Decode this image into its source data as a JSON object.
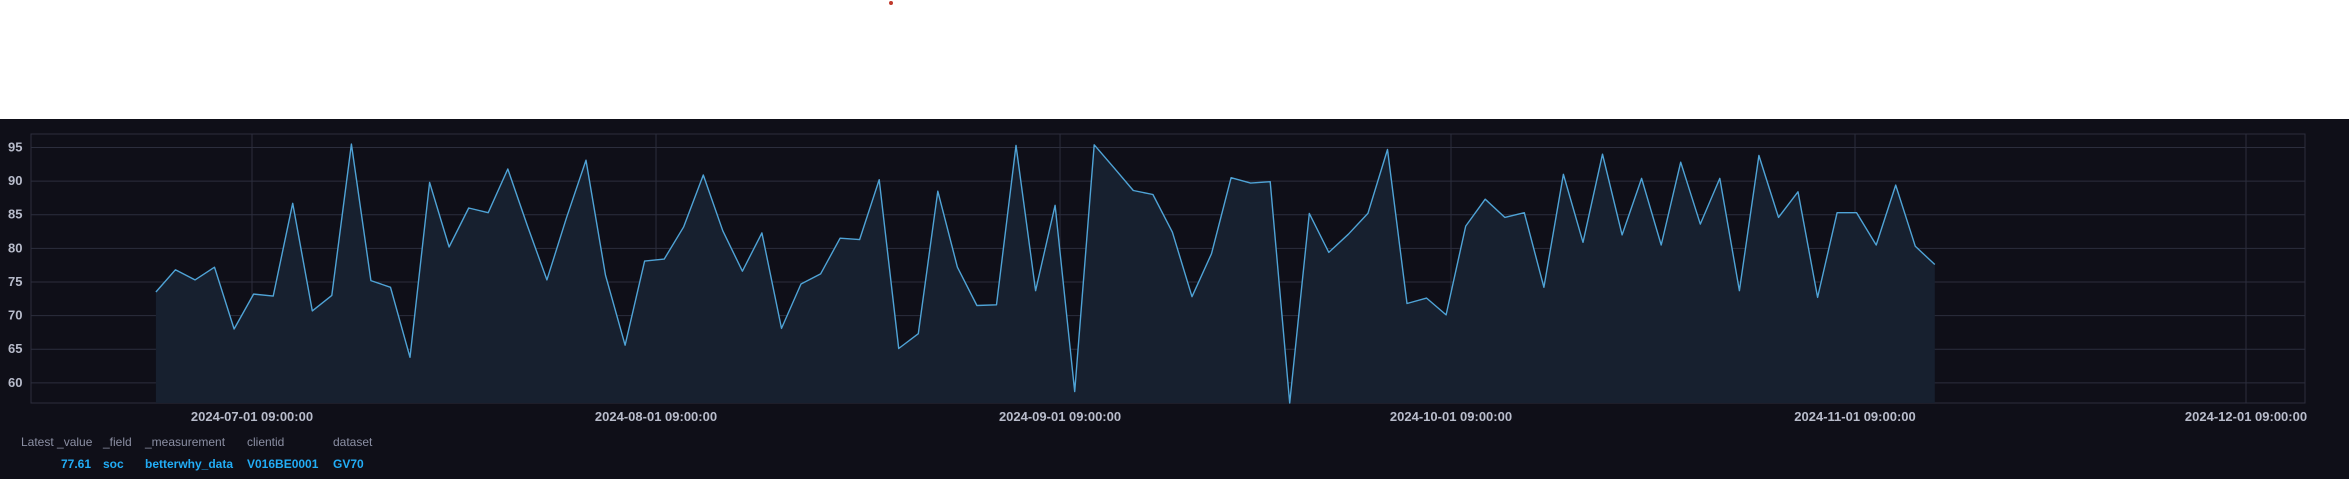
{
  "chart_data": {
    "type": "area",
    "x_start": "2024-06-24",
    "x_step_days": 1.5,
    "y": [
      73.5,
      76.8,
      75.3,
      77.2,
      68,
      73.2,
      72.9,
      86.7,
      70.7,
      73,
      95.5,
      75.2,
      74.2,
      63.8,
      89.8,
      80.2,
      86,
      85.3,
      91.8,
      83.4,
      75.3,
      84.5,
      93.1,
      76,
      65.6,
      78.1,
      78.4,
      83.2,
      90.9,
      82.6,
      76.6,
      82.3,
      68.1,
      74.7,
      76.2,
      81.5,
      81.3,
      90.2,
      65.1,
      67.3,
      88.5,
      77.2,
      71.5,
      71.6,
      95.3,
      73.7,
      86.4,
      58.7,
      95.4,
      92,
      88.6,
      88,
      82.4,
      72.8,
      79.2,
      90.5,
      89.7,
      89.9,
      57,
      85.2,
      79.4,
      82.1,
      85.2,
      94.7,
      71.8,
      72.6,
      70.1,
      83.3,
      87.3,
      84.6,
      85.3,
      74.2,
      91,
      80.9,
      94,
      82,
      90.4,
      80.5,
      92.8,
      83.6,
      90.4,
      73.7,
      93.8,
      84.6,
      88.4,
      72.7,
      85.3,
      85.3,
      80.5,
      89.4,
      80.3,
      77.6
    ],
    "x_ticks": [
      "2024-07-01 09:00:00",
      "2024-08-01 09:00:00",
      "2024-09-01 09:00:00",
      "2024-10-01 09:00:00",
      "2024-11-01 09:00:00",
      "2024-12-01 09:00:00"
    ],
    "y_ticks": [
      95,
      90,
      85,
      80,
      75,
      70,
      65,
      60
    ],
    "ylim": [
      57,
      97
    ],
    "grid": true,
    "colors": {
      "line": "#4fa3d6",
      "fill": "#17202f",
      "grid": "#2c2e3d",
      "tick_text": "#b8bccb"
    }
  },
  "legend": {
    "columns": [
      {
        "header": "Latest _value",
        "value": "77.61"
      },
      {
        "header": "_field",
        "value": "soc"
      },
      {
        "header": "_measurement",
        "value": "betterwhy_data"
      },
      {
        "header": "clientid",
        "value": "V016BE0001"
      },
      {
        "header": "dataset",
        "value": "GV70"
      }
    ]
  }
}
